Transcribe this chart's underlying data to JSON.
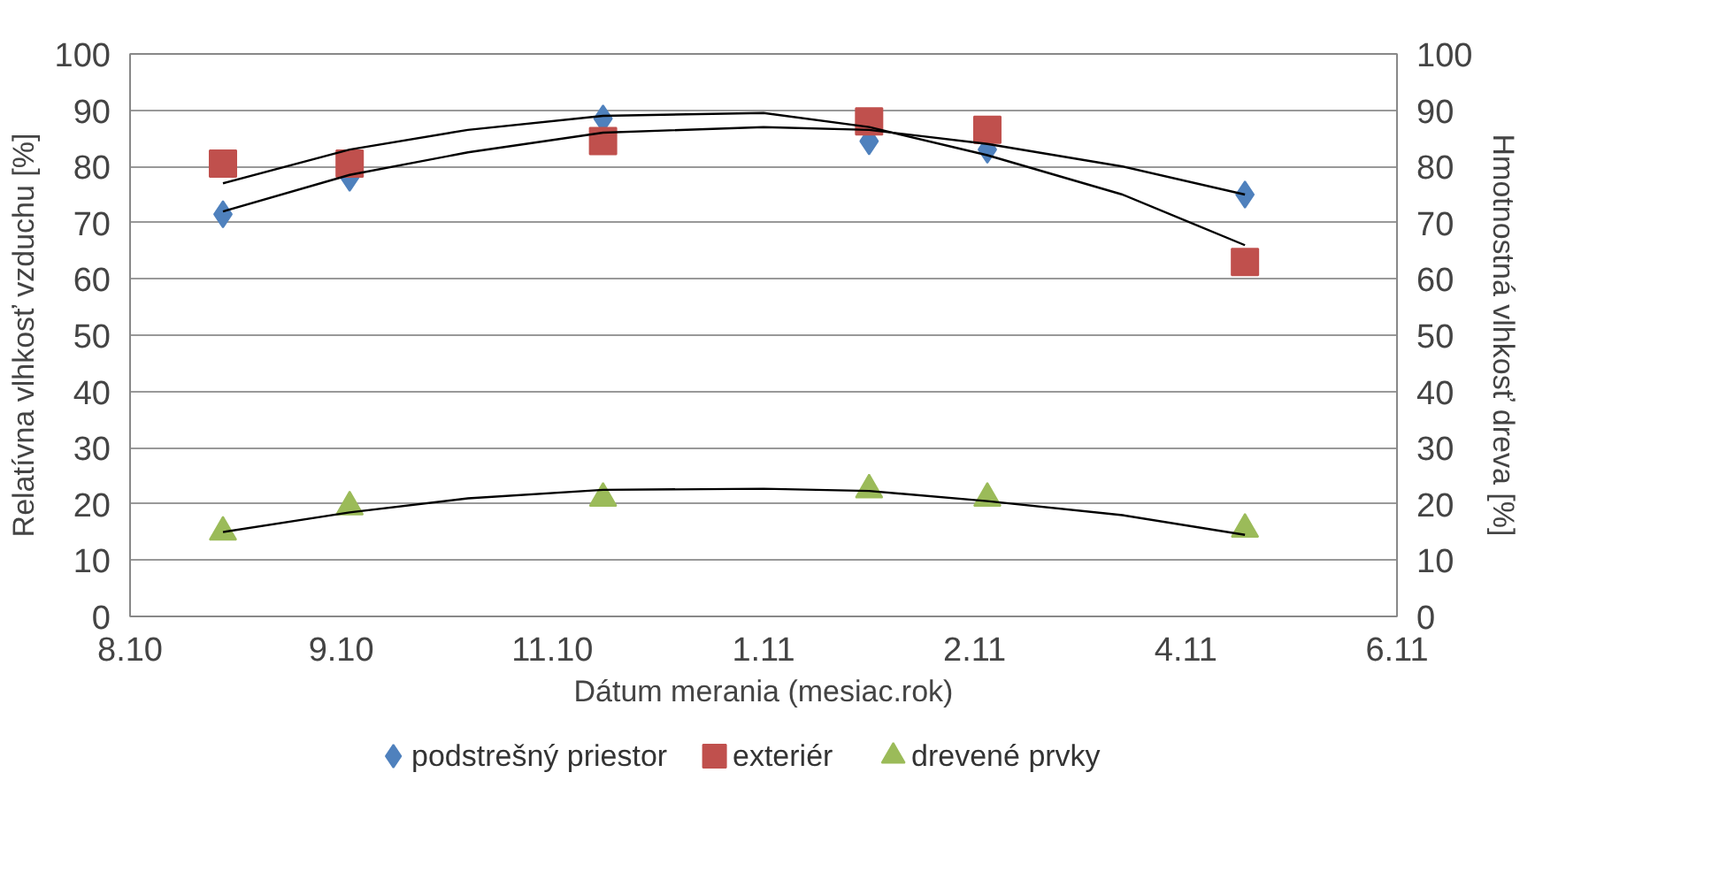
{
  "chart_data": {
    "type": "scatter",
    "xlabel": "Dátum merania (mesiac.rok)",
    "ylabel": "Relatívna vlhkosť vzduchu [%]",
    "y2label": "Hmotnostná vlhkosť dreva [%]",
    "xlim": [
      "2010-08-10",
      "2011-06-06"
    ],
    "xticks": [
      {
        "value": "2010-08-10",
        "label": "8.10"
      },
      {
        "value": "2010-09-29",
        "label": "9.10"
      },
      {
        "value": "2010-11-18",
        "label": "11.10"
      },
      {
        "value": "2011-01-07",
        "label": "1.11"
      },
      {
        "value": "2011-02-26",
        "label": "2.11"
      },
      {
        "value": "2011-04-17",
        "label": "4.11"
      },
      {
        "value": "2011-06-06",
        "label": "6.11"
      }
    ],
    "ylim": [
      0,
      100
    ],
    "yticks": [
      0,
      10,
      20,
      30,
      40,
      50,
      60,
      70,
      80,
      90,
      100
    ],
    "y2lim": [
      0,
      100
    ],
    "y2ticks": [
      0,
      10,
      20,
      30,
      40,
      50,
      60,
      70,
      80,
      90,
      100
    ],
    "x": [
      "2010-09-01",
      "2010-10-01",
      "2010-11-30",
      "2011-02-01",
      "2011-03-01",
      "2011-05-01"
    ],
    "series": [
      {
        "name": "podstrešný priestor",
        "color": "#4f81bd",
        "marker": "diamond",
        "values": [
          71.5,
          78,
          88.5,
          84.5,
          83,
          75
        ]
      },
      {
        "name": "exteriér",
        "color": "#c0504d",
        "marker": "square",
        "values": [
          80.5,
          80.5,
          84.5,
          88,
          86.5,
          63
        ]
      },
      {
        "name": "drevené prvky",
        "color": "#9bbb59",
        "marker": "triangle",
        "axis": "y2",
        "values": [
          15,
          19.5,
          21,
          22.5,
          21,
          15.5
        ]
      },
      {
        "type": "line",
        "color": "#000000",
        "marker": "none",
        "x": [
          "2010-09-01",
          "2010-10-01",
          "2010-10-29",
          "2010-11-30",
          "2011-01-07",
          "2011-02-01",
          "2011-03-01",
          "2011-04-02",
          "2011-05-01"
        ],
        "values": [
          72,
          78.5,
          82.5,
          86,
          87,
          86.5,
          84,
          80,
          75
        ]
      },
      {
        "type": "line",
        "color": "#000000",
        "marker": "none",
        "x": [
          "2010-09-01",
          "2010-10-01",
          "2010-10-29",
          "2010-11-30",
          "2011-01-07",
          "2011-02-01",
          "2011-03-01",
          "2011-04-02",
          "2011-05-01"
        ],
        "values": [
          77,
          83,
          86.5,
          89,
          89.5,
          87,
          82,
          75,
          66
        ]
      },
      {
        "type": "line",
        "color": "#000000",
        "marker": "none",
        "axis": "y2",
        "x": [
          "2010-09-01",
          "2010-10-01",
          "2010-10-29",
          "2010-11-30",
          "2011-01-07",
          "2011-02-01",
          "2011-03-01",
          "2011-04-02",
          "2011-05-01"
        ],
        "values": [
          15,
          18.5,
          21,
          22.5,
          22.7,
          22.3,
          20.5,
          18,
          14.5
        ]
      }
    ],
    "grid": "y",
    "legend": "bottom"
  }
}
